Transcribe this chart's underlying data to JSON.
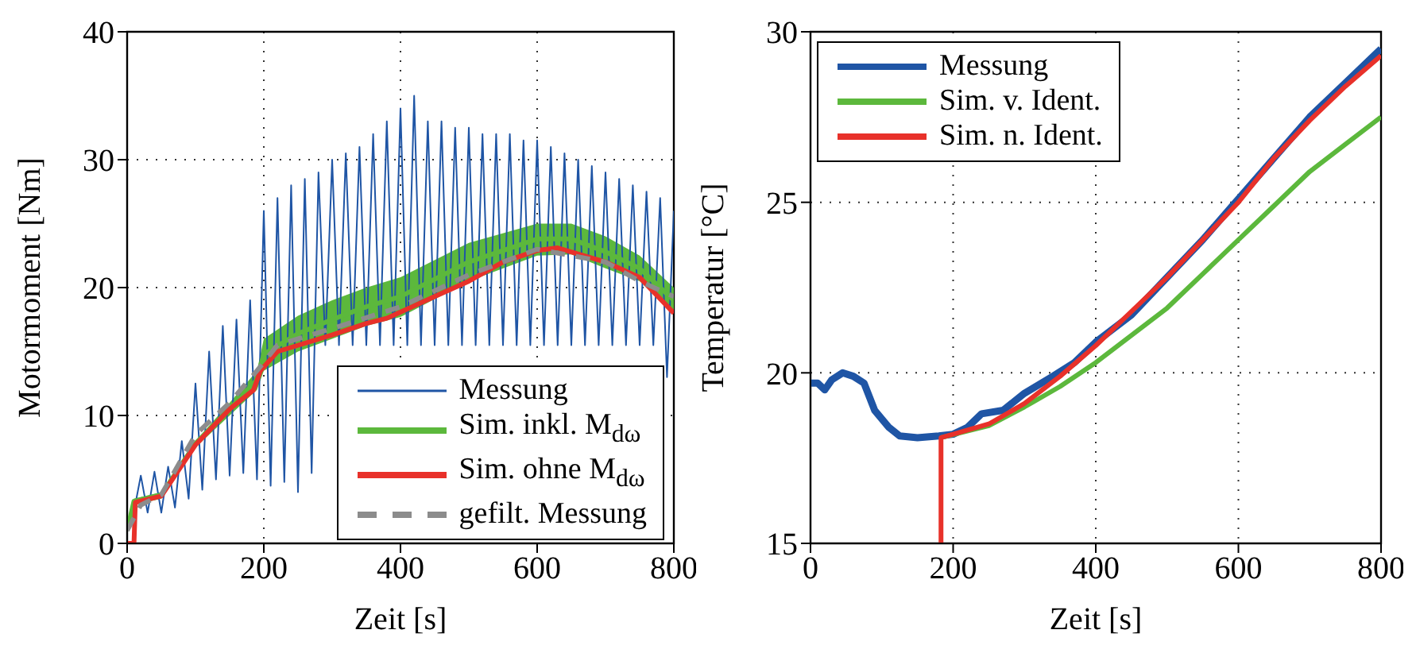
{
  "chart_data": [
    {
      "type": "line",
      "xlabel": "Zeit [s]",
      "ylabel": "Motormoment [Nm]",
      "xlim": [
        0,
        800
      ],
      "ylim": [
        0,
        40
      ],
      "xticks": [
        0,
        200,
        400,
        600,
        800
      ],
      "yticks": [
        0,
        10,
        20,
        30,
        40
      ],
      "grid": true,
      "legend": "bottom right",
      "series": [
        {
          "name": "Messung",
          "color": "#1f55a5",
          "x": [
            0,
            10,
            20,
            30,
            40,
            50,
            60,
            70,
            80,
            90,
            100,
            110,
            120,
            130,
            140,
            150,
            160,
            170,
            180,
            190,
            200,
            210,
            220,
            230,
            240,
            250,
            260,
            270,
            280,
            290,
            300,
            310,
            320,
            330,
            340,
            350,
            360,
            370,
            380,
            390,
            400,
            410,
            420,
            430,
            440,
            450,
            460,
            470,
            480,
            490,
            500,
            510,
            520,
            530,
            540,
            550,
            560,
            570,
            580,
            590,
            600,
            610,
            620,
            630,
            640,
            650,
            660,
            670,
            680,
            690,
            700,
            710,
            720,
            730,
            740,
            750,
            760,
            770,
            780,
            790,
            800
          ],
          "values": [
            1,
            2.5,
            5.3,
            2.4,
            5.6,
            2.4,
            6,
            2.8,
            8,
            3.5,
            12.5,
            4.2,
            15,
            5,
            17,
            5.3,
            17.5,
            5.5,
            19,
            5,
            26,
            4.5,
            27,
            4.8,
            28,
            4,
            28.5,
            5.5,
            29,
            15.5,
            30,
            15.5,
            30.5,
            15.5,
            31,
            15.5,
            32,
            15.5,
            33,
            15.5,
            34,
            15.5,
            35,
            15.5,
            33,
            15.5,
            33,
            15.5,
            32.5,
            15.5,
            32.5,
            15.5,
            32,
            15.5,
            32,
            15.5,
            32,
            15.5,
            31.5,
            15.5,
            31.5,
            15.5,
            31,
            15.5,
            30.5,
            15.5,
            30,
            15.5,
            29.5,
            15.5,
            29,
            15.5,
            28.5,
            15.5,
            28,
            15.5,
            27.5,
            15.5,
            27,
            13,
            26
          ]
        },
        {
          "name": "Sim. inkl. M$_{dω}$",
          "color": "#5cb83c",
          "x": [
            0,
            10,
            50,
            100,
            150,
            190,
            200,
            250,
            300,
            350,
            400,
            500,
            600,
            650,
            700,
            750,
            800
          ],
          "lower": [
            1,
            3,
            3.5,
            7.5,
            10,
            12,
            13.5,
            15,
            16,
            17,
            17.7,
            20.5,
            22.5,
            22.6,
            21.5,
            20.5,
            18
          ],
          "upper": [
            1,
            3.5,
            4,
            8,
            11,
            13.5,
            16,
            17.8,
            19,
            20,
            20.8,
            23.5,
            25,
            25,
            24,
            22.5,
            20
          ],
          "values": [
            1,
            3.3,
            3.8,
            7.8,
            10.5,
            12.8,
            14.8,
            16.4,
            17.5,
            18.5,
            19.3,
            22,
            23.8,
            23.8,
            22.8,
            21.5,
            19
          ]
        },
        {
          "name": "Sim. ohne M$_{dω}$",
          "color": "#e8312a",
          "x": [
            0,
            10,
            12,
            50,
            100,
            150,
            185,
            195,
            220,
            300,
            350,
            380,
            450,
            500,
            550,
            600,
            630,
            700,
            750,
            800
          ],
          "values": [
            0,
            0,
            3.2,
            3.7,
            7.7,
            10.5,
            12,
            13.5,
            15,
            16.3,
            17.2,
            17.6,
            19.3,
            20.5,
            22,
            22.9,
            23.1,
            22,
            20.8,
            18
          ]
        },
        {
          "name": "gefilt. Messung",
          "color": "#8c8c8c",
          "line_style": "dashed",
          "x": [
            0,
            20,
            50,
            100,
            150,
            190,
            220,
            300,
            400,
            500,
            600,
            700,
            750,
            800
          ],
          "values": [
            1,
            3,
            3.8,
            8.5,
            11,
            13.5,
            15.5,
            16.8,
            18.5,
            21,
            23,
            22,
            20.5,
            19.3
          ]
        }
      ]
    },
    {
      "type": "line",
      "xlabel": "Zeit [s]",
      "ylabel": "Temperatur [°C]",
      "xlim": [
        0,
        800
      ],
      "ylim": [
        15,
        30
      ],
      "xticks": [
        0,
        200,
        400,
        600,
        800
      ],
      "yticks": [
        15,
        20,
        25,
        30
      ],
      "grid": true,
      "legend": "top left",
      "series": [
        {
          "name": "Messung",
          "color": "#1f55a5",
          "x": [
            0,
            10,
            20,
            30,
            45,
            60,
            75,
            90,
            110,
            125,
            150,
            180,
            200,
            220,
            240,
            270,
            300,
            340,
            370,
            400,
            450,
            500,
            550,
            600,
            650,
            700,
            750,
            800
          ],
          "values": [
            19.7,
            19.7,
            19.5,
            19.8,
            20,
            19.9,
            19.7,
            18.9,
            18.4,
            18.15,
            18.1,
            18.15,
            18.2,
            18.4,
            18.8,
            18.9,
            19.4,
            19.9,
            20.3,
            20.9,
            21.7,
            22.8,
            23.9,
            25.1,
            26.3,
            27.5,
            28.5,
            29.5
          ]
        },
        {
          "name": "Sim. v. Ident.",
          "color": "#5cb83c",
          "x": [
            183,
            250,
            300,
            350,
            400,
            450,
            500,
            550,
            600,
            650,
            700,
            750,
            800
          ],
          "values": [
            18.1,
            18.45,
            19,
            19.6,
            20.3,
            21.1,
            21.9,
            22.9,
            23.9,
            24.9,
            25.9,
            26.7,
            27.5
          ]
        },
        {
          "name": "Sim. n. Ident.",
          "color": "#e8312a",
          "x": [
            183,
            183,
            200,
            250,
            300,
            350,
            400,
            450,
            500,
            550,
            600,
            650,
            700,
            750,
            800
          ],
          "values": [
            15,
            18.1,
            18.2,
            18.5,
            19.1,
            19.9,
            20.8,
            21.8,
            22.8,
            23.9,
            25,
            26.3,
            27.4,
            28.4,
            29.3
          ]
        }
      ]
    }
  ]
}
